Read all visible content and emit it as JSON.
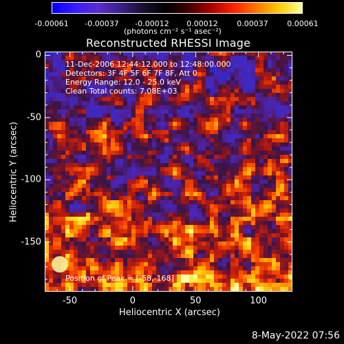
{
  "colorbar": {
    "ticks": [
      "-0.00061",
      "-0.00037",
      "-0.00012",
      "0.00012",
      "0.00037",
      "0.00061"
    ],
    "units_label": "(photons cm⁻² s⁻¹ asec⁻²)",
    "stops": [
      "#0000ff",
      "#3a1aff",
      "#5a2cd0",
      "#3a2088",
      "#1a1030",
      "#000000",
      "#400000",
      "#aa0000",
      "#ff2200",
      "#ff7700",
      "#ffcc00",
      "#ffff99"
    ]
  },
  "chart_data": {
    "type": "heatmap",
    "title": "Reconstructed RHESSI Image",
    "xlabel": "Heliocentric X (arcsec)",
    "ylabel": "Heliocentric Y (arcsec)",
    "x_ticks": [
      "-50",
      "0",
      "50",
      "100"
    ],
    "y_ticks": [
      "0",
      "-50",
      "-100",
      "-150"
    ],
    "xlim": [
      -70,
      127
    ],
    "ylim": [
      -190,
      3
    ],
    "annotations": [
      "11-Dec-2006 12:44:12.000 to 12:48:00.000",
      "Detectors: 3F 4F 5F 6F 7F 8F, Att 0",
      "Energy Range: 12.0 - 25.0 keV",
      "Clean     Total counts: 7.08E+03"
    ],
    "peak_label": "Position of Peak = [-58,-168]",
    "peak": [
      -58,
      -168
    ],
    "value_range": [
      -0.00061,
      0.00061
    ]
  },
  "footer": {
    "timestamp": "8-May-2022 07:56"
  }
}
